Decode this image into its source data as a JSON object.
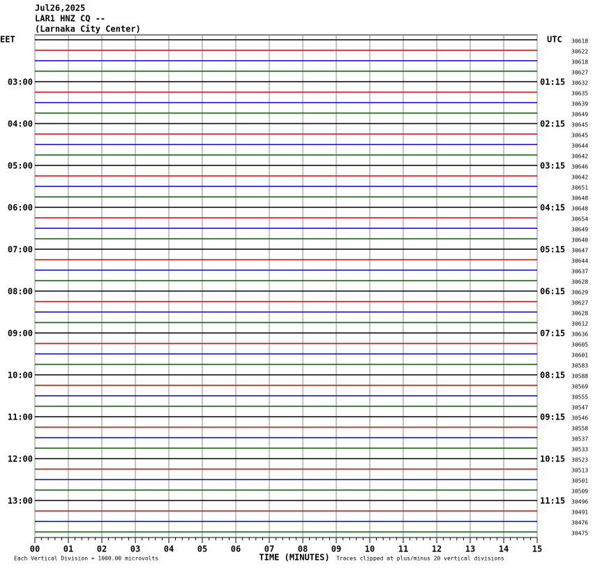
{
  "header": {
    "date": "Jul26,2025",
    "station": "LAR1 HNZ CQ --",
    "location": "(Larnaka City Center)"
  },
  "left_label": "EET",
  "right_label": "UTC",
  "hour_labels_local": [
    "03:00",
    "04:00",
    "05:00",
    "06:00",
    "07:00",
    "08:00",
    "09:00",
    "10:00",
    "11:00",
    "12:00",
    "13:00"
  ],
  "hour_labels_utc": [
    "01:15",
    "02:15",
    "03:15",
    "04:15",
    "05:15",
    "06:15",
    "07:15",
    "08:15",
    "09:15",
    "10:15",
    "11:15"
  ],
  "trace_colors": [
    "#000000",
    "#e00000",
    "#0000d0",
    "#006400"
  ],
  "trace_counts": [
    30618,
    30622,
    30618,
    30627,
    30632,
    30635,
    30639,
    30649,
    30645,
    30645,
    30644,
    30642,
    30646,
    30642,
    30651,
    30648,
    30648,
    30654,
    30649,
    30640,
    30647,
    30644,
    30637,
    30628,
    30629,
    30627,
    30628,
    30612,
    30636,
    30605,
    30601,
    30583,
    30588,
    30569,
    30555,
    30547,
    30546,
    30558,
    30537,
    30533,
    30523,
    30513,
    30501,
    30509,
    30496,
    30491,
    30476,
    30475
  ],
  "x_axis": {
    "title": "TIME (MINUTES)",
    "xlim": [
      0,
      15
    ],
    "ticks": [
      {
        "value": 0,
        "label": "00"
      },
      {
        "value": 1,
        "label": "01"
      },
      {
        "value": 2,
        "label": "02"
      },
      {
        "value": 3,
        "label": "03"
      },
      {
        "value": 4,
        "label": "04"
      },
      {
        "value": 5,
        "label": "05"
      },
      {
        "value": 6,
        "label": "06"
      },
      {
        "value": 7,
        "label": "07"
      },
      {
        "value": 8,
        "label": "08"
      },
      {
        "value": 9,
        "label": "09"
      },
      {
        "value": 10,
        "label": "10"
      },
      {
        "value": 11,
        "label": "11"
      },
      {
        "value": 12,
        "label": "12"
      },
      {
        "value": 13,
        "label": "13"
      },
      {
        "value": 14,
        "label": "14"
      },
      {
        "value": 15,
        "label": "15"
      }
    ]
  },
  "footer": {
    "scale_note": "Each Vertical Division = 1000.00 microvolts",
    "clip_note": "Traces clipped at plus/minus 20 vertical divisions"
  }
}
